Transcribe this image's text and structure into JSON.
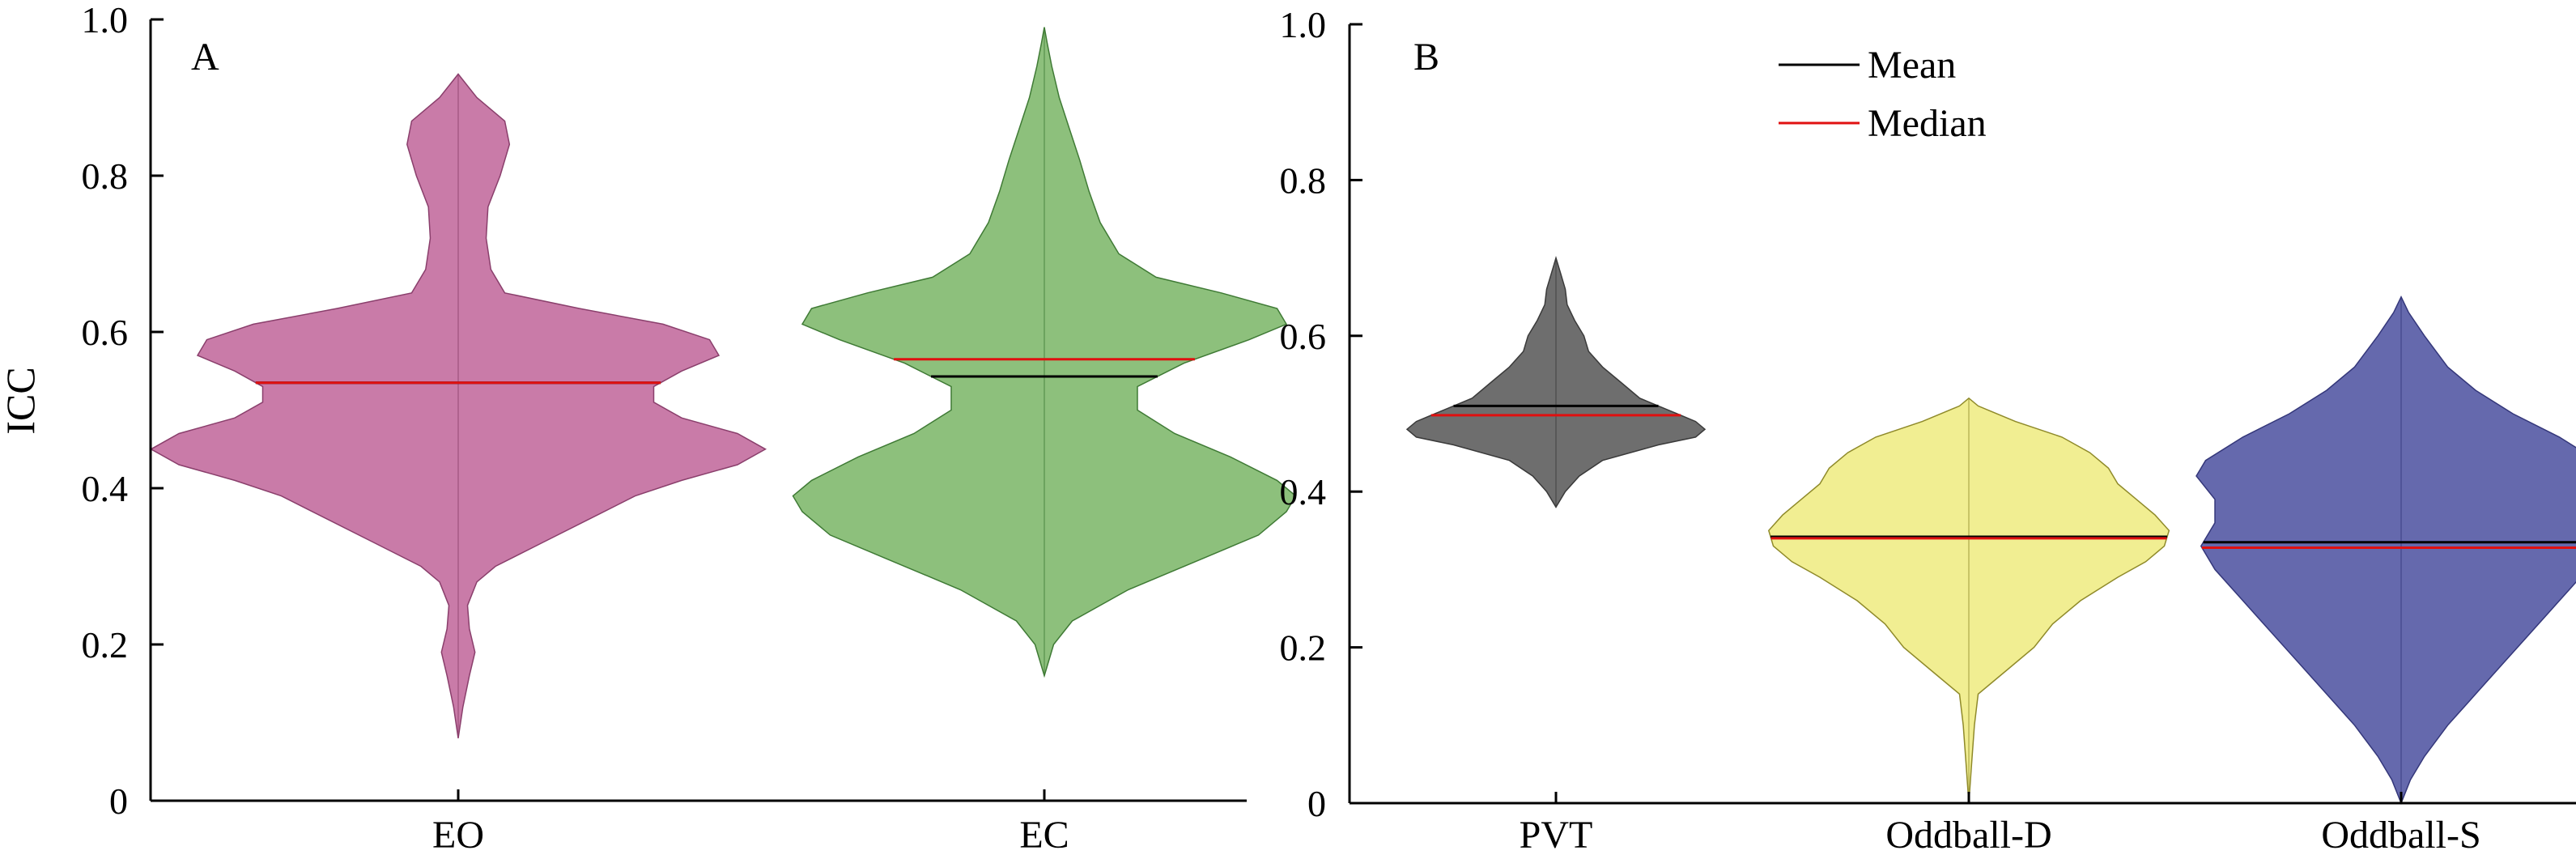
{
  "chart_data": [
    {
      "panel": "A",
      "type": "violin",
      "ylabel": "ICC",
      "ylim": [
        0,
        1.0
      ],
      "yticks": [
        0,
        0.2,
        0.4,
        0.6,
        0.8,
        1.0
      ],
      "ytick_labels": [
        "0",
        "0.2",
        "0.4",
        "0.6",
        "0.8",
        "1.0"
      ],
      "categories": [
        "EO",
        "EC"
      ],
      "series": [
        {
          "category": "EO",
          "color": "#c97ba8",
          "edge_color": "#8a3f6c",
          "mean": 0.535,
          "median": 0.535,
          "range": [
            0.08,
            0.93
          ],
          "density": [
            [
              0.08,
              0
            ],
            [
              0.12,
              0.005
            ],
            [
              0.16,
              0.012
            ],
            [
              0.19,
              0.018
            ],
            [
              0.22,
              0.012
            ],
            [
              0.25,
              0.01
            ],
            [
              0.28,
              0.02
            ],
            [
              0.3,
              0.04
            ],
            [
              0.33,
              0.09
            ],
            [
              0.36,
              0.14
            ],
            [
              0.39,
              0.19
            ],
            [
              0.41,
              0.24
            ],
            [
              0.43,
              0.3
            ],
            [
              0.45,
              0.33
            ],
            [
              0.47,
              0.3
            ],
            [
              0.49,
              0.24
            ],
            [
              0.51,
              0.21
            ],
            [
              0.53,
              0.21
            ],
            [
              0.55,
              0.24
            ],
            [
              0.57,
              0.28
            ],
            [
              0.59,
              0.27
            ],
            [
              0.61,
              0.22
            ],
            [
              0.63,
              0.13
            ],
            [
              0.65,
              0.05
            ],
            [
              0.68,
              0.035
            ],
            [
              0.72,
              0.03
            ],
            [
              0.76,
              0.032
            ],
            [
              0.8,
              0.045
            ],
            [
              0.84,
              0.055
            ],
            [
              0.87,
              0.05
            ],
            [
              0.9,
              0.02
            ],
            [
              0.93,
              0
            ]
          ]
        },
        {
          "category": "EC",
          "color": "#8dc07c",
          "edge_color": "#3f7a35",
          "mean": 0.543,
          "median": 0.565,
          "range": [
            0.16,
            0.99
          ],
          "density": [
            [
              0.16,
              0
            ],
            [
              0.2,
              0.01
            ],
            [
              0.23,
              0.03
            ],
            [
              0.27,
              0.09
            ],
            [
              0.31,
              0.17
            ],
            [
              0.34,
              0.23
            ],
            [
              0.37,
              0.26
            ],
            [
              0.39,
              0.27
            ],
            [
              0.41,
              0.25
            ],
            [
              0.44,
              0.2
            ],
            [
              0.47,
              0.14
            ],
            [
              0.5,
              0.1
            ],
            [
              0.53,
              0.1
            ],
            [
              0.56,
              0.15
            ],
            [
              0.59,
              0.22
            ],
            [
              0.61,
              0.26
            ],
            [
              0.63,
              0.25
            ],
            [
              0.65,
              0.19
            ],
            [
              0.67,
              0.12
            ],
            [
              0.7,
              0.08
            ],
            [
              0.74,
              0.06
            ],
            [
              0.78,
              0.048
            ],
            [
              0.82,
              0.038
            ],
            [
              0.86,
              0.027
            ],
            [
              0.9,
              0.016
            ],
            [
              0.94,
              0.008
            ],
            [
              0.97,
              0.003
            ],
            [
              0.99,
              0
            ]
          ]
        }
      ]
    },
    {
      "panel": "B",
      "type": "violin",
      "ylabel": "",
      "ylim": [
        0,
        1.0
      ],
      "yticks": [
        0,
        0.2,
        0.4,
        0.6,
        0.8,
        1.0
      ],
      "ytick_labels": [
        "0",
        "0.2",
        "0.4",
        "0.6",
        "0.8",
        "1.0"
      ],
      "categories": [
        "PVT",
        "Oddball-D",
        "Oddball-S"
      ],
      "legend": {
        "placement": "top",
        "entries": [
          {
            "label": "Mean",
            "color": "#000000"
          },
          {
            "label": "Median",
            "color": "#e01010"
          }
        ]
      },
      "series": [
        {
          "category": "PVT",
          "color": "#6e6e6e",
          "edge_color": "#3a3a3a",
          "mean": 0.51,
          "median": 0.498,
          "range": [
            0.38,
            0.7
          ],
          "density": [
            [
              0.38,
              0
            ],
            [
              0.4,
              0.01
            ],
            [
              0.42,
              0.025
            ],
            [
              0.44,
              0.05
            ],
            [
              0.46,
              0.11
            ],
            [
              0.47,
              0.15
            ],
            [
              0.48,
              0.16
            ],
            [
              0.49,
              0.15
            ],
            [
              0.5,
              0.13
            ],
            [
              0.51,
              0.11
            ],
            [
              0.52,
              0.09
            ],
            [
              0.54,
              0.07
            ],
            [
              0.56,
              0.05
            ],
            [
              0.58,
              0.035
            ],
            [
              0.6,
              0.03
            ],
            [
              0.62,
              0.02
            ],
            [
              0.64,
              0.012
            ],
            [
              0.66,
              0.01
            ],
            [
              0.68,
              0.005
            ],
            [
              0.7,
              0
            ]
          ]
        },
        {
          "category": "Oddball-D",
          "color": "#f1ee92",
          "edge_color": "#8f8a2a",
          "mean": 0.342,
          "median": 0.34,
          "range": [
            0.0,
            0.52
          ],
          "density": [
            [
              0.0,
              0
            ],
            [
              0.05,
              0.003
            ],
            [
              0.1,
              0.006
            ],
            [
              0.14,
              0.01
            ],
            [
              0.17,
              0.04
            ],
            [
              0.2,
              0.07
            ],
            [
              0.23,
              0.09
            ],
            [
              0.26,
              0.12
            ],
            [
              0.29,
              0.16
            ],
            [
              0.31,
              0.19
            ],
            [
              0.33,
              0.21
            ],
            [
              0.35,
              0.215
            ],
            [
              0.37,
              0.2
            ],
            [
              0.39,
              0.18
            ],
            [
              0.41,
              0.16
            ],
            [
              0.43,
              0.15
            ],
            [
              0.45,
              0.13
            ],
            [
              0.47,
              0.1
            ],
            [
              0.49,
              0.05
            ],
            [
              0.51,
              0.01
            ],
            [
              0.52,
              0
            ]
          ]
        },
        {
          "category": "Oddball-S",
          "color": "#6569ad",
          "edge_color": "#34377a",
          "mean": 0.335,
          "median": 0.328,
          "range": [
            0.0,
            0.65
          ],
          "density": [
            [
              0.0,
              0
            ],
            [
              0.03,
              0.01
            ],
            [
              0.06,
              0.025
            ],
            [
              0.1,
              0.05
            ],
            [
              0.14,
              0.08
            ],
            [
              0.18,
              0.11
            ],
            [
              0.22,
              0.14
            ],
            [
              0.26,
              0.17
            ],
            [
              0.3,
              0.2
            ],
            [
              0.33,
              0.215
            ],
            [
              0.36,
              0.2
            ],
            [
              0.39,
              0.2
            ],
            [
              0.42,
              0.22
            ],
            [
              0.44,
              0.21
            ],
            [
              0.47,
              0.17
            ],
            [
              0.5,
              0.12
            ],
            [
              0.53,
              0.08
            ],
            [
              0.56,
              0.05
            ],
            [
              0.6,
              0.025
            ],
            [
              0.63,
              0.008
            ],
            [
              0.65,
              0
            ]
          ]
        }
      ]
    }
  ]
}
